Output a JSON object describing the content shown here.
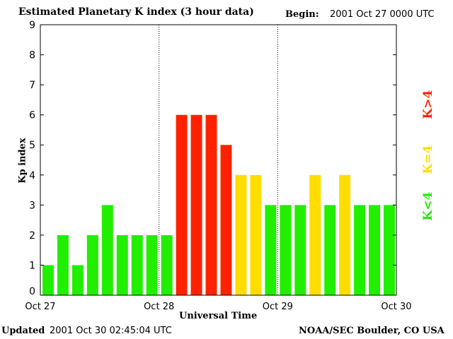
{
  "chart_data": {
    "type": "bar",
    "title": "Estimated Planetary K index (3 hour data)",
    "begin_label": "Begin:",
    "begin_value": "2001 Oct 27 0000 UTC",
    "xlabel": "Universal Time",
    "ylabel": "Kp index",
    "ylim": [
      0,
      9
    ],
    "yticks": [
      "0",
      "1",
      "2",
      "3",
      "4",
      "5",
      "6",
      "7",
      "8",
      "9"
    ],
    "xticks": [
      "Oct 27",
      "Oct 28",
      "Oct 29",
      "Oct 30"
    ],
    "values": [
      1,
      2,
      1,
      2,
      3,
      2,
      2,
      2,
      2,
      6,
      6,
      6,
      5,
      4,
      4,
      3,
      3,
      3,
      4,
      3,
      4,
      3,
      3,
      3
    ],
    "legend": [
      {
        "label": "K>4",
        "color": "#ff2200"
      },
      {
        "label": "K=4",
        "color": "#ffdd00"
      },
      {
        "label": "K<4",
        "color": "#22ee00"
      }
    ],
    "legend_placement": "right",
    "colors": {
      "low": "#22ee00",
      "equal": "#ffdd00",
      "high": "#ff2200"
    }
  },
  "footer": {
    "updated_label": "Updated",
    "updated_value": "2001 Oct 30 02:45:04 UTC",
    "source": "NOAA/SEC Boulder, CO USA"
  }
}
